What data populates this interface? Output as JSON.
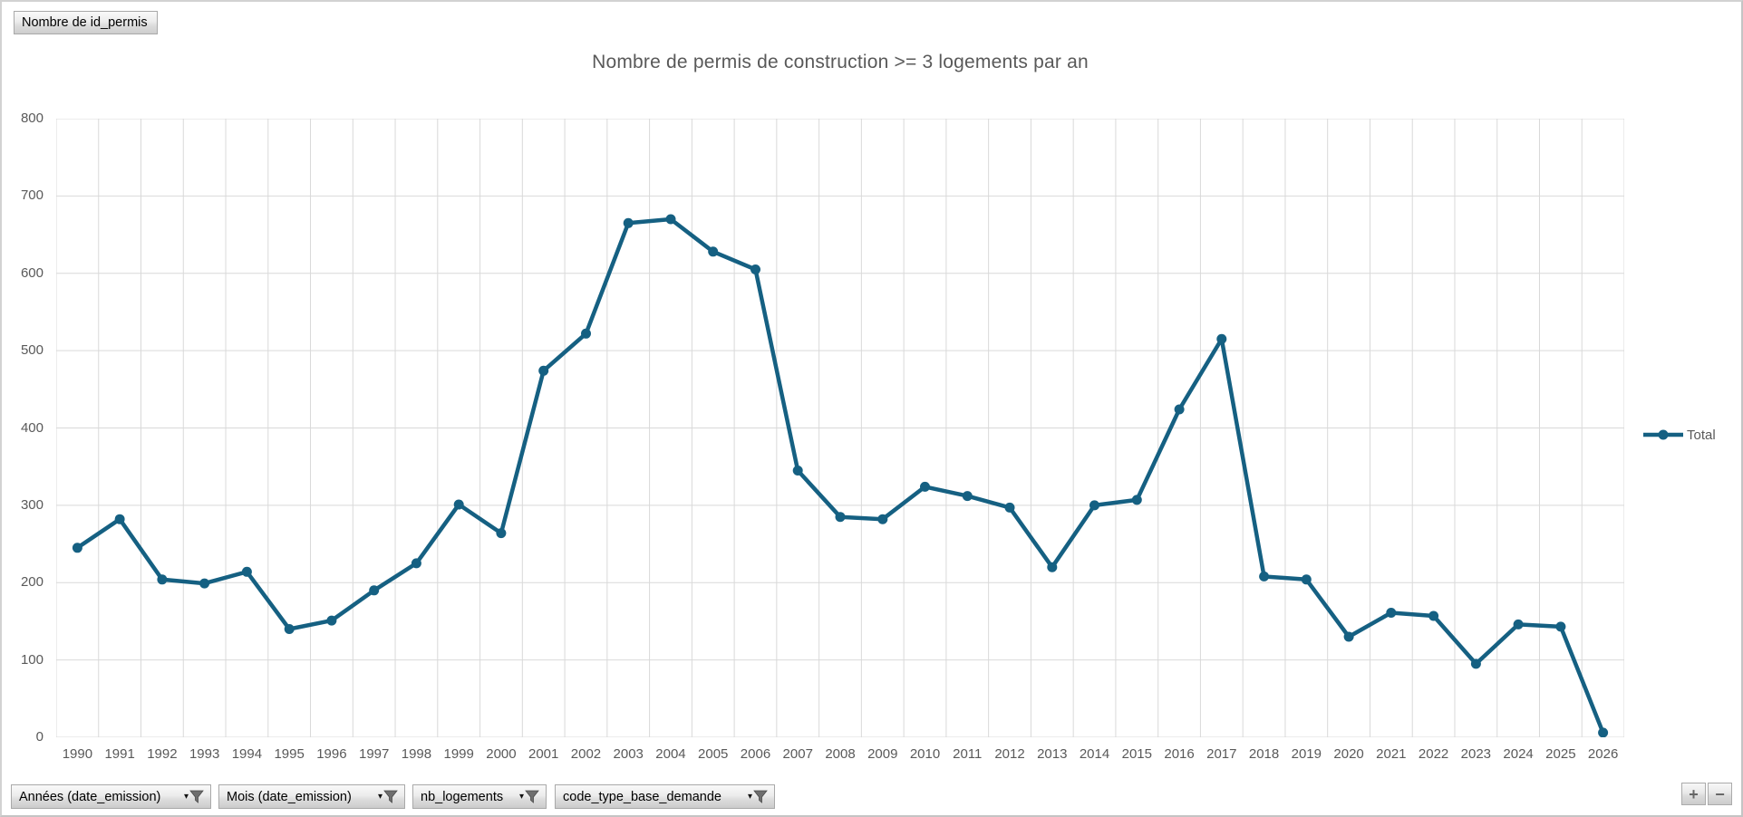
{
  "pivot_button": {
    "label": "Nombre de id_permis"
  },
  "chart_data": {
    "type": "line",
    "title": "Nombre de permis de construction >= 3 logements par an",
    "categories": [
      "1990",
      "1991",
      "1992",
      "1993",
      "1994",
      "1995",
      "1996",
      "1997",
      "1998",
      "1999",
      "2000",
      "2001",
      "2002",
      "2003",
      "2004",
      "2005",
      "2006",
      "2007",
      "2008",
      "2009",
      "2010",
      "2011",
      "2012",
      "2013",
      "2014",
      "2015",
      "2016",
      "2017",
      "2018",
      "2019",
      "2020",
      "2021",
      "2022",
      "2023",
      "2024",
      "2025",
      "2026"
    ],
    "series": [
      {
        "name": "Total",
        "values": [
          245,
          282,
          204,
          199,
          214,
          140,
          151,
          190,
          225,
          301,
          264,
          474,
          522,
          665,
          670,
          628,
          605,
          345,
          285,
          282,
          324,
          312,
          297,
          220,
          300,
          307,
          424,
          515,
          208,
          204,
          130,
          161,
          157,
          95,
          146,
          143,
          6
        ]
      }
    ],
    "xlabel": "",
    "ylabel": "",
    "ylim": [
      0,
      800
    ],
    "yticks": [
      0,
      100,
      200,
      300,
      400,
      500,
      600,
      700,
      800
    ],
    "grid": true,
    "legend_position": "right"
  },
  "field_buttons": [
    {
      "label": "Années (date_emission)"
    },
    {
      "label": "Mois (date_emission)"
    },
    {
      "label": "nb_logements"
    },
    {
      "label": "code_type_base_demande"
    }
  ],
  "zoom_controls": {
    "plus": "+",
    "minus": "−"
  },
  "colors": {
    "line": "#156082",
    "axis_text": "#595959",
    "gridline": "#d9d9d9",
    "funnel_icon": "#6e6e6e"
  }
}
